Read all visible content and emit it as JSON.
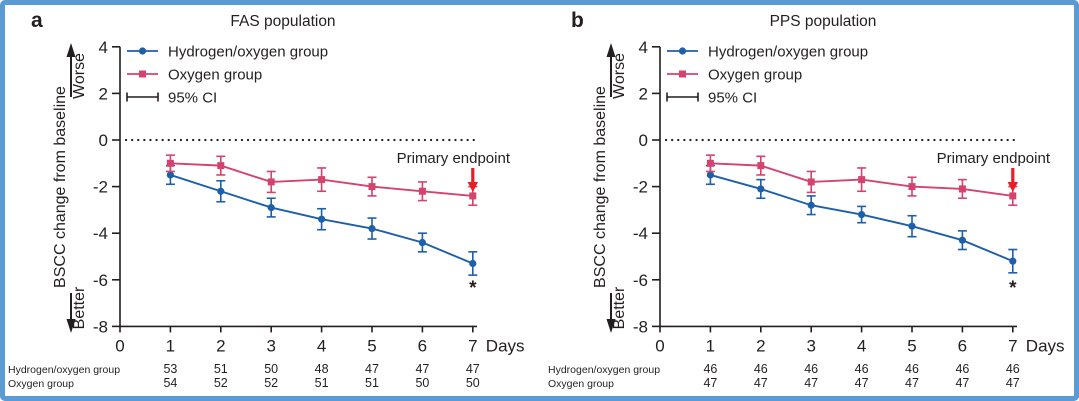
{
  "figure": {
    "border_color": "#5b9bd5",
    "background": "#ffffff",
    "axis_color": "#231f20"
  },
  "chart_data": [
    {
      "type": "line",
      "panel_label": "a",
      "title": "FAS population",
      "xlabel": "Days",
      "ylabel": "BSCC change from baseline",
      "ylabel_top": "Worse",
      "ylabel_bottom": "Better",
      "xlim": [
        0,
        7
      ],
      "ylim": [
        -8,
        4
      ],
      "xticks": [
        0,
        1,
        2,
        3,
        4,
        5,
        6,
        7
      ],
      "yticks": [
        4,
        2,
        0,
        -2,
        -4,
        -6,
        -8
      ],
      "x": [
        1,
        2,
        3,
        4,
        5,
        6,
        7
      ],
      "reference_line_y": 0,
      "grid": "off",
      "legend_position": "top-left-inside",
      "legend": [
        {
          "label": "Hydrogen/oxygen group",
          "marker": "circle",
          "color": "#1e5fa9"
        },
        {
          "label": "Oxygen group",
          "marker": "square",
          "color": "#d4436e"
        },
        {
          "label": "95% CI",
          "marker": "errorbar",
          "color": "#231f20"
        }
      ],
      "series": [
        {
          "name": "Hydrogen/oxygen group",
          "marker": "circle",
          "color": "#1e5fa9",
          "values": [
            -1.5,
            -2.2,
            -2.9,
            -3.4,
            -3.8,
            -4.4,
            -5.3
          ],
          "ci": [
            0.4,
            0.45,
            0.4,
            0.45,
            0.45,
            0.4,
            0.5
          ]
        },
        {
          "name": "Oxygen group",
          "marker": "square",
          "color": "#d4436e",
          "values": [
            -1.0,
            -1.1,
            -1.8,
            -1.7,
            -2.0,
            -2.2,
            -2.4
          ],
          "ci": [
            0.35,
            0.4,
            0.45,
            0.5,
            0.4,
            0.4,
            0.4
          ]
        }
      ],
      "annotation": {
        "text": "Primary endpoint",
        "arrow_color": "#ec1c24",
        "target_day": 7
      },
      "significance_marker": {
        "text": "*",
        "day": 7
      },
      "n_table": [
        {
          "label": "Hydrogen/oxygen group",
          "values": [
            53,
            51,
            50,
            48,
            47,
            47,
            47
          ]
        },
        {
          "label": "Oxygen group",
          "values": [
            54,
            52,
            52,
            51,
            51,
            50,
            50
          ]
        }
      ]
    },
    {
      "type": "line",
      "panel_label": "b",
      "title": "PPS population",
      "xlabel": "Days",
      "ylabel": "BSCC change from baseline",
      "ylabel_top": "Worse",
      "ylabel_bottom": "Better",
      "xlim": [
        0,
        7
      ],
      "ylim": [
        -8,
        4
      ],
      "xticks": [
        0,
        1,
        2,
        3,
        4,
        5,
        6,
        7
      ],
      "yticks": [
        4,
        2,
        0,
        -2,
        -4,
        -6,
        -8
      ],
      "x": [
        1,
        2,
        3,
        4,
        5,
        6,
        7
      ],
      "reference_line_y": 0,
      "grid": "off",
      "legend_position": "top-left-inside",
      "legend": [
        {
          "label": "Hydrogen/oxygen group",
          "marker": "circle",
          "color": "#1e5fa9"
        },
        {
          "label": "Oxygen group",
          "marker": "square",
          "color": "#d4436e"
        },
        {
          "label": "95% CI",
          "marker": "errorbar",
          "color": "#231f20"
        }
      ],
      "series": [
        {
          "name": "Hydrogen/oxygen group",
          "marker": "circle",
          "color": "#1e5fa9",
          "values": [
            -1.5,
            -2.1,
            -2.8,
            -3.2,
            -3.7,
            -4.3,
            -5.2
          ],
          "ci": [
            0.4,
            0.4,
            0.4,
            0.35,
            0.45,
            0.4,
            0.5
          ]
        },
        {
          "name": "Oxygen group",
          "marker": "square",
          "color": "#d4436e",
          "values": [
            -1.0,
            -1.1,
            -1.8,
            -1.7,
            -2.0,
            -2.1,
            -2.4
          ],
          "ci": [
            0.35,
            0.4,
            0.45,
            0.5,
            0.4,
            0.4,
            0.4
          ]
        }
      ],
      "annotation": {
        "text": "Primary endpoint",
        "arrow_color": "#ec1c24",
        "target_day": 7
      },
      "significance_marker": {
        "text": "*",
        "day": 7
      },
      "n_table": [
        {
          "label": "Hydrogen/oxygen group",
          "values": [
            46,
            46,
            46,
            46,
            46,
            46,
            46
          ]
        },
        {
          "label": "Oxygen group",
          "values": [
            47,
            47,
            47,
            47,
            47,
            47,
            47
          ]
        }
      ]
    }
  ]
}
